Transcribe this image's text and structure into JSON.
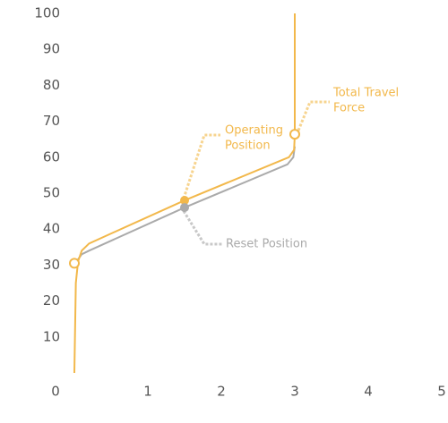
{
  "chart_data": {
    "type": "line",
    "xlim": [
      0,
      5
    ],
    "ylim": [
      0,
      100
    ],
    "xticks": [
      0,
      1,
      2,
      3,
      4,
      5
    ],
    "yticks": [
      10,
      20,
      30,
      40,
      50,
      60,
      70,
      80,
      90,
      100
    ],
    "series": [
      {
        "name": "Operating",
        "color": "#f2b84b",
        "x": [
          0,
          0.02,
          0.05,
          0.1,
          0.2,
          1.5,
          2.92,
          2.99,
          3.0,
          3.0
        ],
        "values": [
          0,
          25,
          31,
          34,
          36,
          48,
          60,
          62,
          66,
          100
        ]
      },
      {
        "name": "Reset",
        "color": "#aaaaaa",
        "x": [
          0.03,
          0.1,
          0.2,
          1.5,
          2.9,
          2.98,
          3.0
        ],
        "values": [
          31,
          33,
          34,
          46,
          58,
          60,
          63
        ]
      }
    ],
    "markers": [
      {
        "x": 0,
        "y": 30.5,
        "style": "open",
        "color": "#f2b84b"
      },
      {
        "x": 1.5,
        "y": 48,
        "style": "filled",
        "color": "#f2b84b"
      },
      {
        "x": 1.5,
        "y": 46,
        "style": "filled",
        "color": "#aaaaaa"
      },
      {
        "x": 3.0,
        "y": 66.4,
        "style": "open",
        "color": "#f2b84b"
      }
    ],
    "annotations": [
      {
        "lines": [
          "Operating",
          "Position"
        ],
        "color": "#f2b84b"
      },
      {
        "lines": [
          "Total Travel",
          "Force"
        ],
        "color": "#f2b84b"
      },
      {
        "lines": [
          "Reset Position"
        ],
        "color": "#aaaaaa"
      }
    ]
  }
}
